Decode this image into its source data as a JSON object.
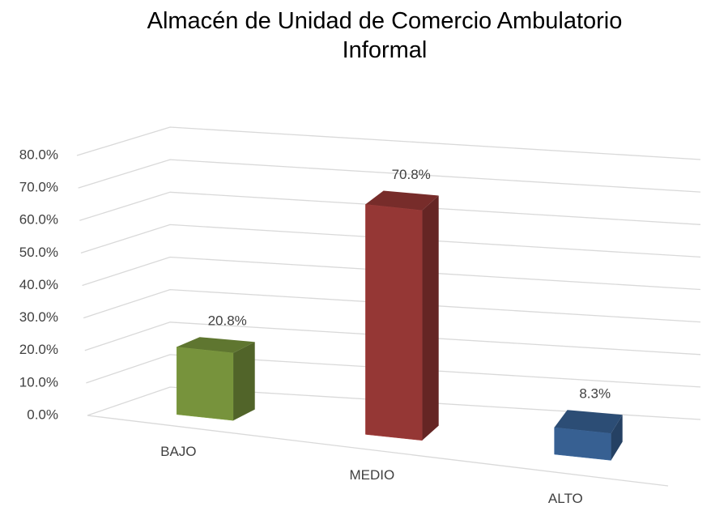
{
  "chart_data": {
    "type": "bar3d",
    "title": "Almacén de Unidad de Comercio Ambulatorio Informal",
    "categories": [
      "BAJO",
      "MEDIO",
      "ALTO"
    ],
    "values": [
      20.8,
      70.8,
      8.3
    ],
    "value_labels": [
      "20.8%",
      "70.8%",
      "8.3%"
    ],
    "colors": [
      "#77933c",
      "#953735",
      "#376092"
    ],
    "ylim": [
      0,
      80
    ],
    "yticks": [
      {
        "value": 0,
        "label": "0.0%"
      },
      {
        "value": 10,
        "label": "10.0%"
      },
      {
        "value": 20,
        "label": "20.0%"
      },
      {
        "value": 30,
        "label": "30.0%"
      },
      {
        "value": 40,
        "label": "40.0%"
      },
      {
        "value": 50,
        "label": "50.0%"
      },
      {
        "value": 60,
        "label": "60.0%"
      },
      {
        "value": 70,
        "label": "70.0%"
      },
      {
        "value": 80,
        "label": "80.0%"
      }
    ],
    "grid": true
  }
}
